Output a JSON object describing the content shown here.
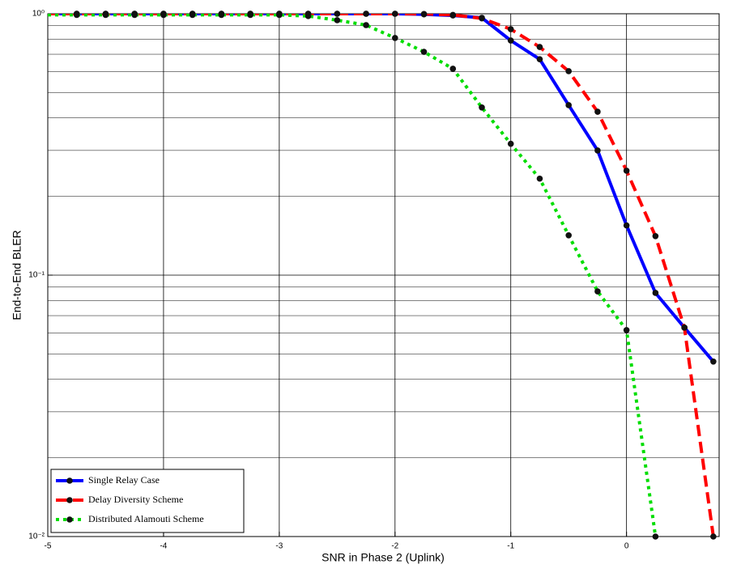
{
  "chart_data": {
    "type": "line",
    "xlabel": "SNR in Phase 2 (Uplink)",
    "ylabel": "End-to-End BLER",
    "x": [
      -5,
      -4.75,
      -4.5,
      -4.25,
      -4,
      -3.75,
      -3.5,
      -3.25,
      -3,
      -2.75,
      -2.5,
      -2.25,
      -2,
      -1.75,
      -1.5,
      -1.25,
      -1,
      -0.75,
      -0.5,
      -0.25,
      0,
      0.25,
      0.5,
      0.75
    ],
    "series": [
      {
        "name": "Single Relay Case",
        "color": "#0000ff",
        "style": "solid",
        "values": [
          1,
          1,
          1,
          1,
          1,
          1,
          1,
          1,
          1,
          1,
          1,
          1,
          1,
          0.995,
          0.985,
          0.965,
          0.79,
          0.67,
          0.447,
          0.3,
          0.155,
          0.0855,
          0.063,
          0.0467
        ]
      },
      {
        "name": "Delay Diversity Scheme",
        "color": "#ff0000",
        "style": "dashed",
        "values": [
          1,
          1,
          1,
          1,
          1,
          1,
          1,
          1,
          1,
          1,
          1,
          1,
          1,
          0.998,
          0.99,
          0.96,
          0.873,
          0.746,
          0.603,
          0.422,
          0.251,
          0.141,
          0.063,
          0.01
        ]
      },
      {
        "name": "Distributed Alamouti Scheme",
        "color": "#00dd00",
        "style": "dotted",
        "values": [
          0.99,
          0.99,
          0.99,
          0.99,
          0.99,
          0.99,
          0.99,
          0.99,
          0.99,
          0.98,
          0.945,
          0.905,
          0.808,
          0.715,
          0.616,
          0.438,
          0.318,
          0.234,
          0.142,
          0.0867,
          0.0616,
          0.01,
          null,
          null
        ]
      }
    ],
    "xlim": [
      -5,
      0.8
    ],
    "xticks": [
      -5,
      -4,
      -3,
      -2,
      -1,
      0
    ],
    "ylim": [
      0.01,
      1
    ],
    "yticks": [
      {
        "value": 0.01,
        "label": "10⁻²"
      },
      {
        "value": 0.1,
        "label": "10⁻¹"
      },
      {
        "value": 1,
        "label": "10⁰"
      }
    ],
    "ylog": true,
    "grid": true,
    "minor_grid": true,
    "legend": "lower left"
  }
}
